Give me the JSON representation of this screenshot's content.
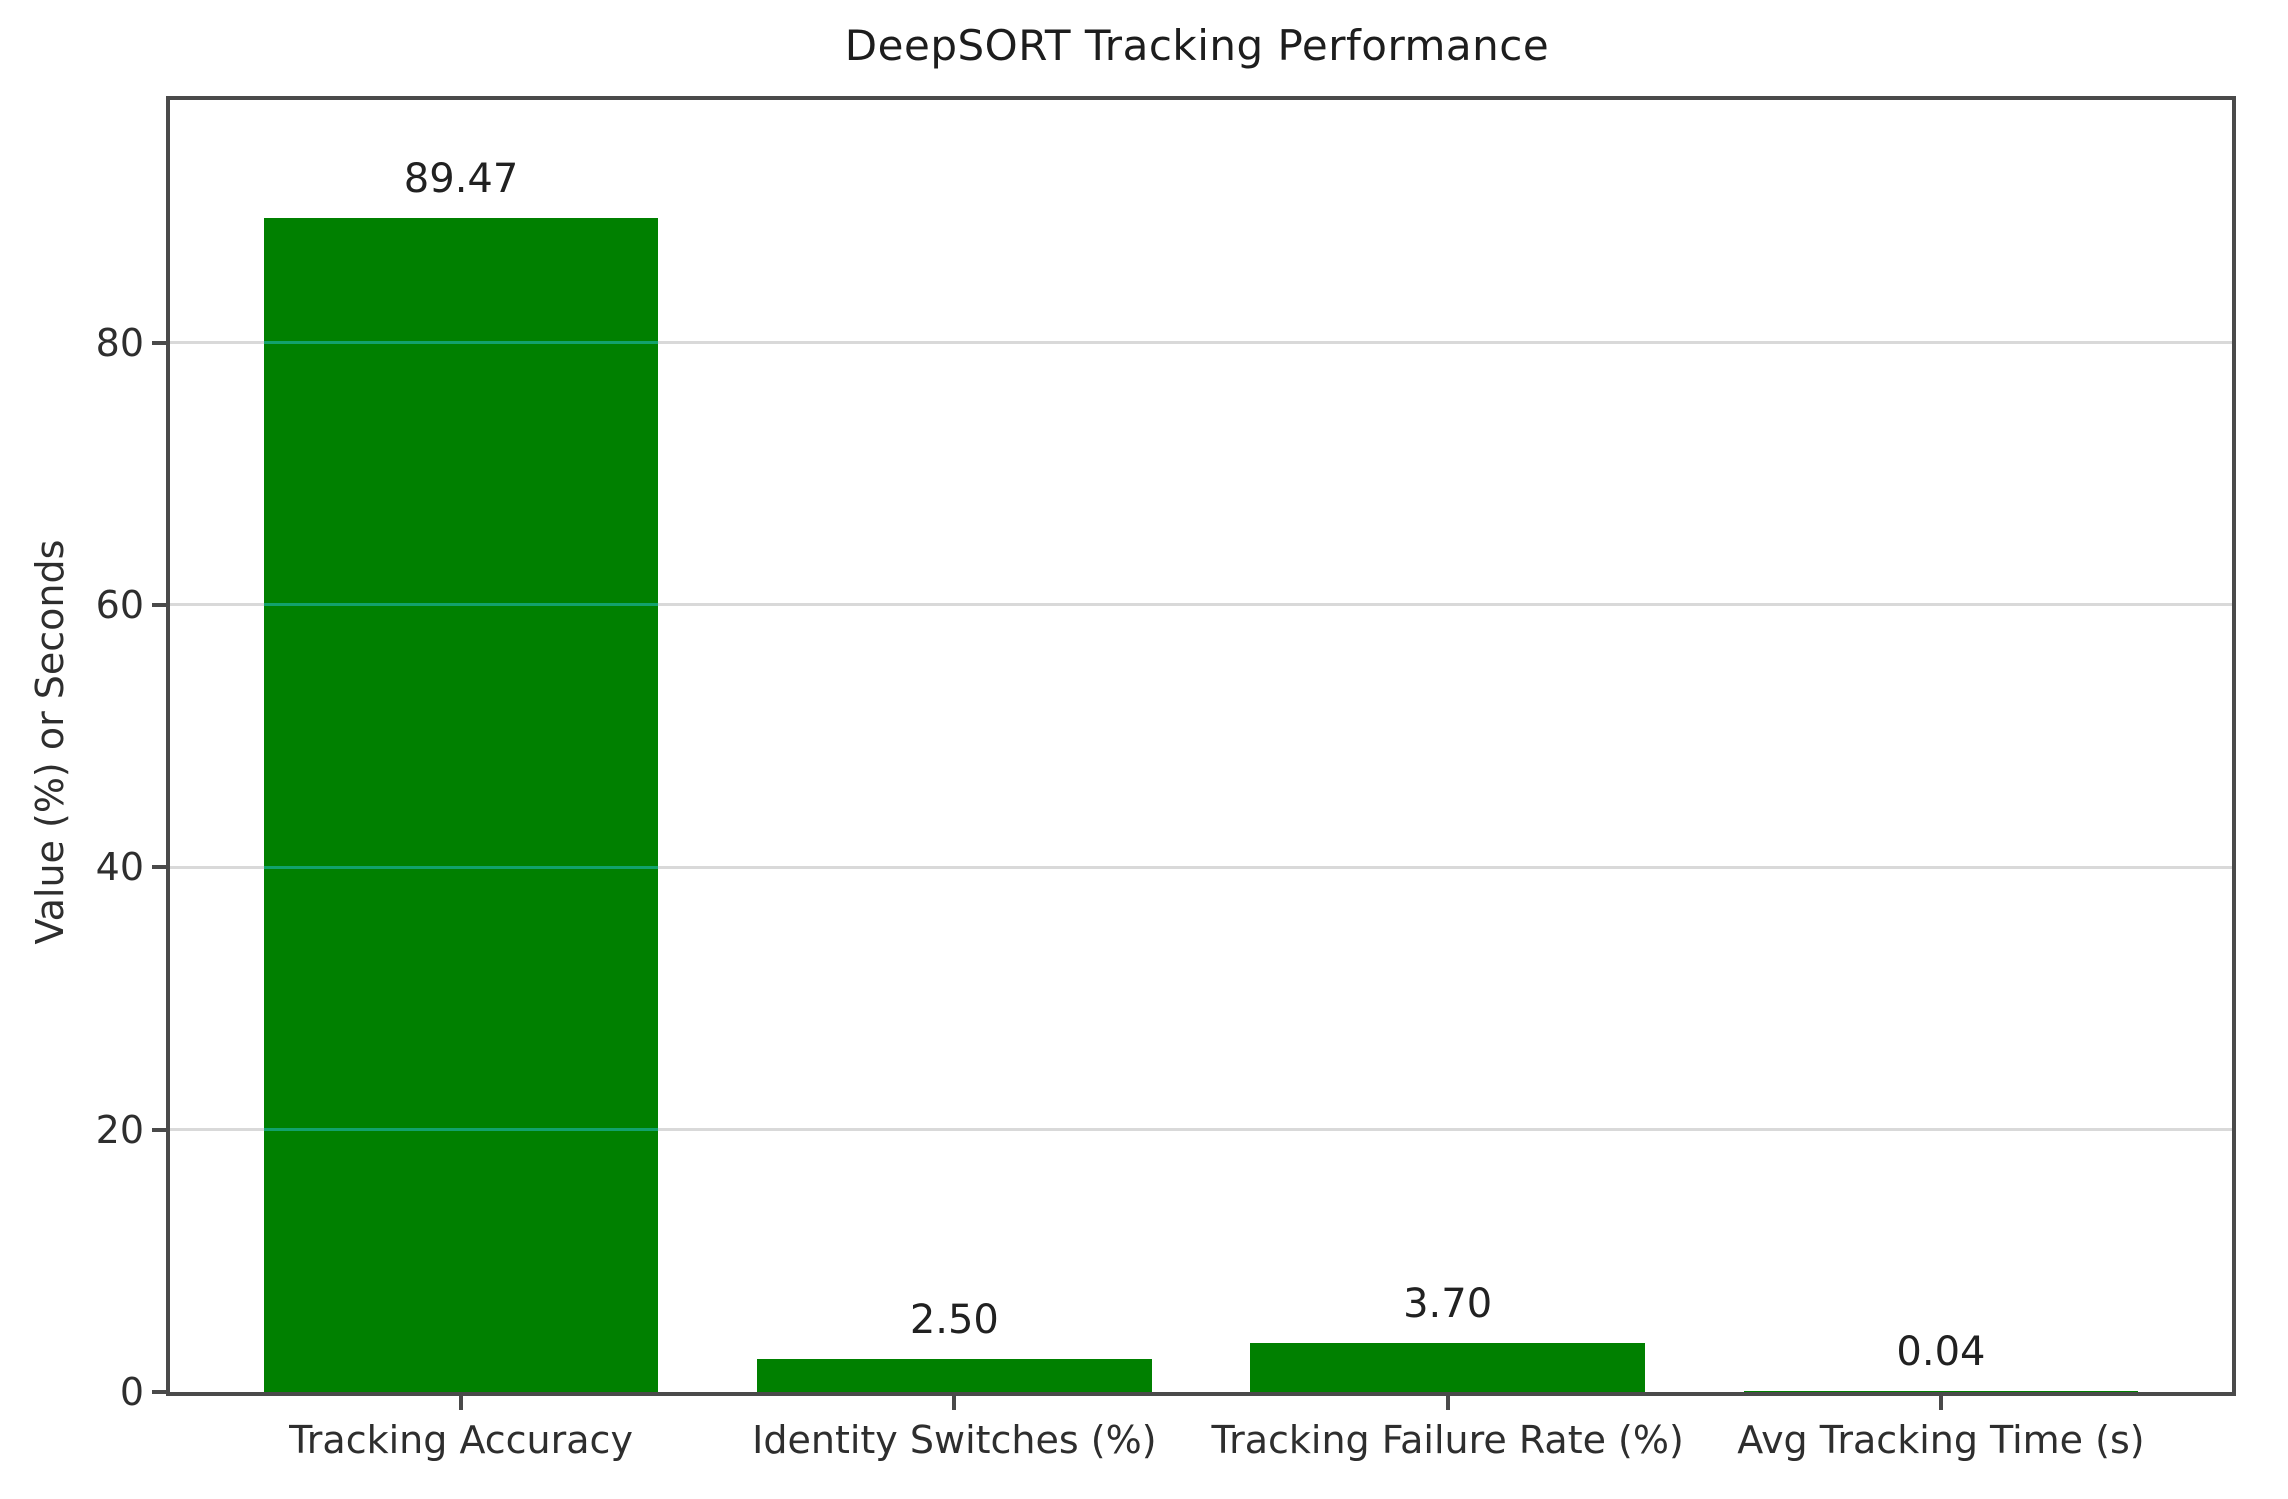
{
  "chart_data": {
    "type": "bar",
    "title": "DeepSORT Tracking Performance",
    "ylabel": "Value (%) or Seconds",
    "xlabel": "",
    "categories": [
      "Tracking Accuracy",
      "Identity Switches (%)",
      "Tracking Failure Rate (%)",
      "Avg Tracking Time (s)"
    ],
    "values": [
      89.47,
      2.5,
      3.7,
      0.04
    ],
    "value_labels": [
      "89.47",
      "2.50",
      "3.70",
      "0.04"
    ],
    "yticks": [
      0,
      20,
      40,
      60,
      80
    ],
    "ytick_labels": [
      "0",
      "20",
      "40",
      "60",
      "80"
    ],
    "ylim": [
      0,
      98.5
    ],
    "grid": true,
    "legend": "none",
    "bar_color": "#008000",
    "grid_color": "#d9d9d9",
    "grid_over_bar_color": "#12a26c",
    "spine_color": "#4a4a4a",
    "title_color": "#1d1d1d",
    "tick_label_color": "#2e2e2e",
    "value_label_color": "#212121",
    "background_color": "#ffffff"
  }
}
